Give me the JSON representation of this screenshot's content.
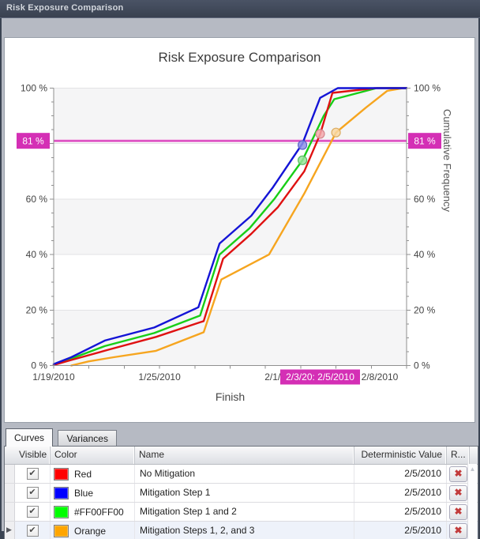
{
  "window": {
    "title": "Risk Exposure Comparison"
  },
  "icons": {
    "check": "✔",
    "delete": "✖",
    "scroll_up": "▲",
    "scroll_down": "▼",
    "row_pointer": "▶"
  },
  "chart": {
    "title": "Risk Exposure Comparison",
    "x_label": "Finish",
    "y_right_label": "Cumulative Frequency",
    "threshold_label": "81 %",
    "crosshair_label": "2/3/20: 2/5/2010",
    "threshold_color": "#D42FB5",
    "threshold_glow_color": "#F2A8E2",
    "chart_data": {
      "type": "line",
      "title": "Risk Exposure Comparison",
      "xlabel": "Finish",
      "ylabel": "Cumulative Frequency",
      "x_start_date": "1/19/2010",
      "x_end_date": "2/8/2010",
      "x_range_days": 20,
      "x_tick_labels": [
        "1/19/2010",
        "1/25/2010",
        "2/1/2010",
        "2/8/2010"
      ],
      "x_tick_days": [
        0,
        6,
        13,
        20
      ],
      "x_minor_tick_step_days": 2,
      "y_tick_labels": [
        "0 %",
        "20 %",
        "40 %",
        "60 %",
        "100 %"
      ],
      "y_tick_values": [
        0,
        20,
        40,
        60,
        100
      ],
      "y_minor_tick_step": 5,
      "ylim": [
        0,
        100
      ],
      "grid": "horizontal",
      "band_values": [
        [
          0,
          20
        ],
        [
          40,
          60
        ],
        [
          80,
          100
        ]
      ],
      "threshold_pct": 81,
      "series": [
        {
          "name": "No Mitigation",
          "color": "#DF1111",
          "points": [
            [
              0,
              0.2
            ],
            [
              1,
              2
            ],
            [
              3.1,
              5.7
            ],
            [
              5.8,
              10.3
            ],
            [
              8.5,
              16
            ],
            [
              9.6,
              38.5
            ],
            [
              11.2,
              47.5
            ],
            [
              12.7,
              57
            ],
            [
              14.2,
              70
            ],
            [
              15.1,
              83.4
            ],
            [
              15.8,
              98.3
            ],
            [
              18.2,
              100
            ],
            [
              20,
              100
            ]
          ]
        },
        {
          "name": "Mitigation Step 1",
          "color": "#1414D6",
          "points": [
            [
              0,
              0.5
            ],
            [
              1,
              3
            ],
            [
              2.9,
              9
            ],
            [
              5.7,
              13.7
            ],
            [
              8.2,
              21
            ],
            [
              9.4,
              44
            ],
            [
              11.2,
              54
            ],
            [
              12.4,
              64
            ],
            [
              14.1,
              80
            ],
            [
              15.1,
              96.5
            ],
            [
              16.1,
              100
            ],
            [
              20,
              100
            ]
          ]
        },
        {
          "name": "Mitigation Step 1 and 2",
          "color": "#17CE17",
          "points": [
            [
              0,
              0.3
            ],
            [
              1,
              2.5
            ],
            [
              2.9,
              7
            ],
            [
              5.7,
              11.7
            ],
            [
              8.3,
              18
            ],
            [
              9.4,
              40
            ],
            [
              11.1,
              49.5
            ],
            [
              12.5,
              60
            ],
            [
              14.1,
              74
            ],
            [
              15.3,
              90
            ],
            [
              15.9,
              96
            ],
            [
              18.3,
              100
            ],
            [
              20,
              100
            ]
          ]
        },
        {
          "name": "Mitigation Steps 1, 2, and 3",
          "color": "#F6A51F",
          "points": [
            [
              1,
              0
            ],
            [
              2,
              1.5
            ],
            [
              3.4,
              3
            ],
            [
              5.8,
              5.3
            ],
            [
              8.5,
              12
            ],
            [
              9.5,
              31
            ],
            [
              12.2,
              40
            ],
            [
              14.2,
              62
            ],
            [
              16,
              84
            ],
            [
              17.7,
              93
            ],
            [
              18.9,
              99
            ],
            [
              19.8,
              100
            ],
            [
              20,
              100
            ]
          ]
        }
      ],
      "markers": [
        {
          "series": "Mitigation Steps 1, 2, and 3",
          "day": 16.0,
          "pct": 84.0,
          "fill": "#F8D7A2",
          "stroke": "#DCAC62"
        },
        {
          "series": "No Mitigation",
          "day": 15.1,
          "pct": 83.5,
          "fill": "#F2A8AC",
          "stroke": "#D4838C"
        },
        {
          "series": "Mitigation Step 1 and 2",
          "day": 14.1,
          "pct": 74.0,
          "fill": "#96E49A",
          "stroke": "#59BA60"
        },
        {
          "series": "Mitigation Step 1",
          "day": 14.1,
          "pct": 79.5,
          "fill": "#8C91E8",
          "stroke": "#5C63C8"
        }
      ],
      "legend_position": "table-below"
    }
  },
  "tabs": [
    {
      "label": "Curves"
    },
    {
      "label": "Variances"
    }
  ],
  "table": {
    "columns": {
      "visible": "Visible",
      "color": "Color",
      "name": "Name",
      "deterministic": "Deterministic Value",
      "remove": "R..."
    },
    "rows": [
      {
        "visible": true,
        "swatch": "#FF0000",
        "color_name": "Red",
        "name": "No Mitigation",
        "deterministic": "2/5/2010"
      },
      {
        "visible": true,
        "swatch": "#0000FF",
        "color_name": "Blue",
        "name": "Mitigation Step 1",
        "deterministic": "2/5/2010"
      },
      {
        "visible": true,
        "swatch": "#00FF00",
        "color_name": "#FF00FF00",
        "name": "Mitigation Step 1 and 2",
        "deterministic": "2/5/2010"
      },
      {
        "visible": true,
        "swatch": "#FFA500",
        "color_name": "Orange",
        "name": "Mitigation Steps 1, 2, and 3",
        "deterministic": "2/5/2010"
      }
    ],
    "selected_row_index": 3
  }
}
